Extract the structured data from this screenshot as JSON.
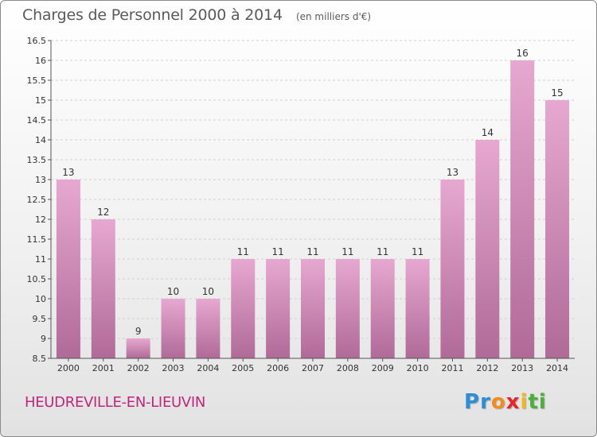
{
  "title": "Charges de Personnel 2000 à 2014",
  "unit": "(en milliers d'€)",
  "commune": "HEUDREVILLE-EN-LIEUVIN",
  "logo": {
    "letters": [
      "P",
      "r",
      "o",
      "x",
      "i",
      "t",
      "i"
    ],
    "colors": [
      "#2c8fd6",
      "#2c8fd6",
      "#f28c1c",
      "#e8262a",
      "#f2b51c",
      "#4caf3a",
      "#4caf3a"
    ]
  },
  "colors": {
    "bar_top": "#e6a8d0",
    "bar_bottom": "#b06a98",
    "axis": "#555555",
    "grid": "#d0d0d0",
    "label_text": "#333333",
    "commune_text": "#c0267d",
    "title_text": "#5a5a5a"
  },
  "chart_data": {
    "type": "bar",
    "categories": [
      "2000",
      "2001",
      "2002",
      "2003",
      "2004",
      "2005",
      "2006",
      "2007",
      "2008",
      "2009",
      "2010",
      "2011",
      "2012",
      "2013",
      "2014"
    ],
    "values": [
      13,
      12,
      9,
      10,
      10,
      11,
      11,
      11,
      11,
      11,
      11,
      13,
      14,
      16,
      15
    ],
    "ylim": [
      8.5,
      16.5
    ],
    "yticks": [
      "8.5",
      "9",
      "9.5",
      "10",
      "10.5",
      "11",
      "11.5",
      "12",
      "12.5",
      "13",
      "13.5",
      "14",
      "14.5",
      "15",
      "15.5",
      "16",
      "16.5"
    ],
    "grid": "horizontal dashed",
    "xlabel": "",
    "ylabel": ""
  }
}
